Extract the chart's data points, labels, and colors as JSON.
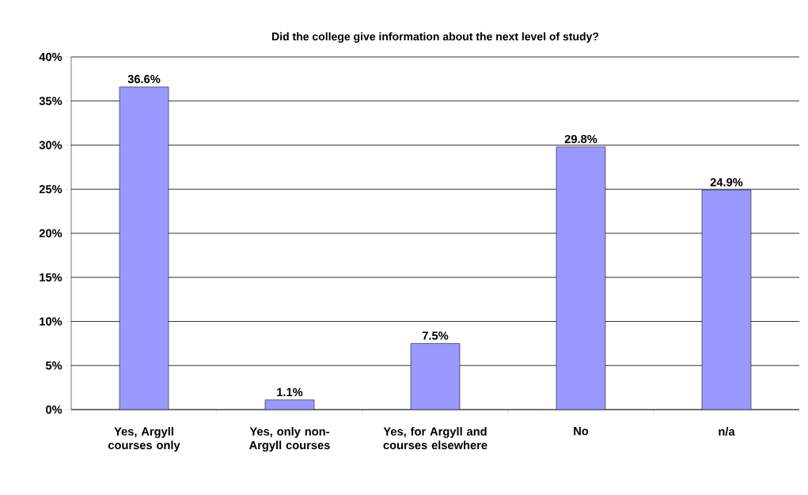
{
  "chart_data": {
    "type": "bar",
    "title": "Did the college give information about the next level of study?",
    "categories": [
      "Yes, Argyll courses only",
      "Yes, only non-Argyll courses",
      "Yes, for Argyll and courses elsewhere",
      "No",
      "n/a"
    ],
    "values": [
      36.6,
      1.1,
      7.5,
      29.8,
      24.9
    ],
    "value_labels": [
      "36.6%",
      "1.1%",
      "7.5%",
      "29.8%",
      "24.9%"
    ],
    "color": "#9999ff",
    "ylim": [
      0,
      40
    ],
    "yticks": [
      {
        "value": 0,
        "label": "0%"
      },
      {
        "value": 5,
        "label": "5%"
      },
      {
        "value": 10,
        "label": "10%"
      },
      {
        "value": 15,
        "label": "15%"
      },
      {
        "value": 20,
        "label": "20%"
      },
      {
        "value": 25,
        "label": "25%"
      },
      {
        "value": 30,
        "label": "30%"
      },
      {
        "value": 35,
        "label": "35%"
      },
      {
        "value": 40,
        "label": "40%"
      }
    ],
    "grid": "y"
  }
}
